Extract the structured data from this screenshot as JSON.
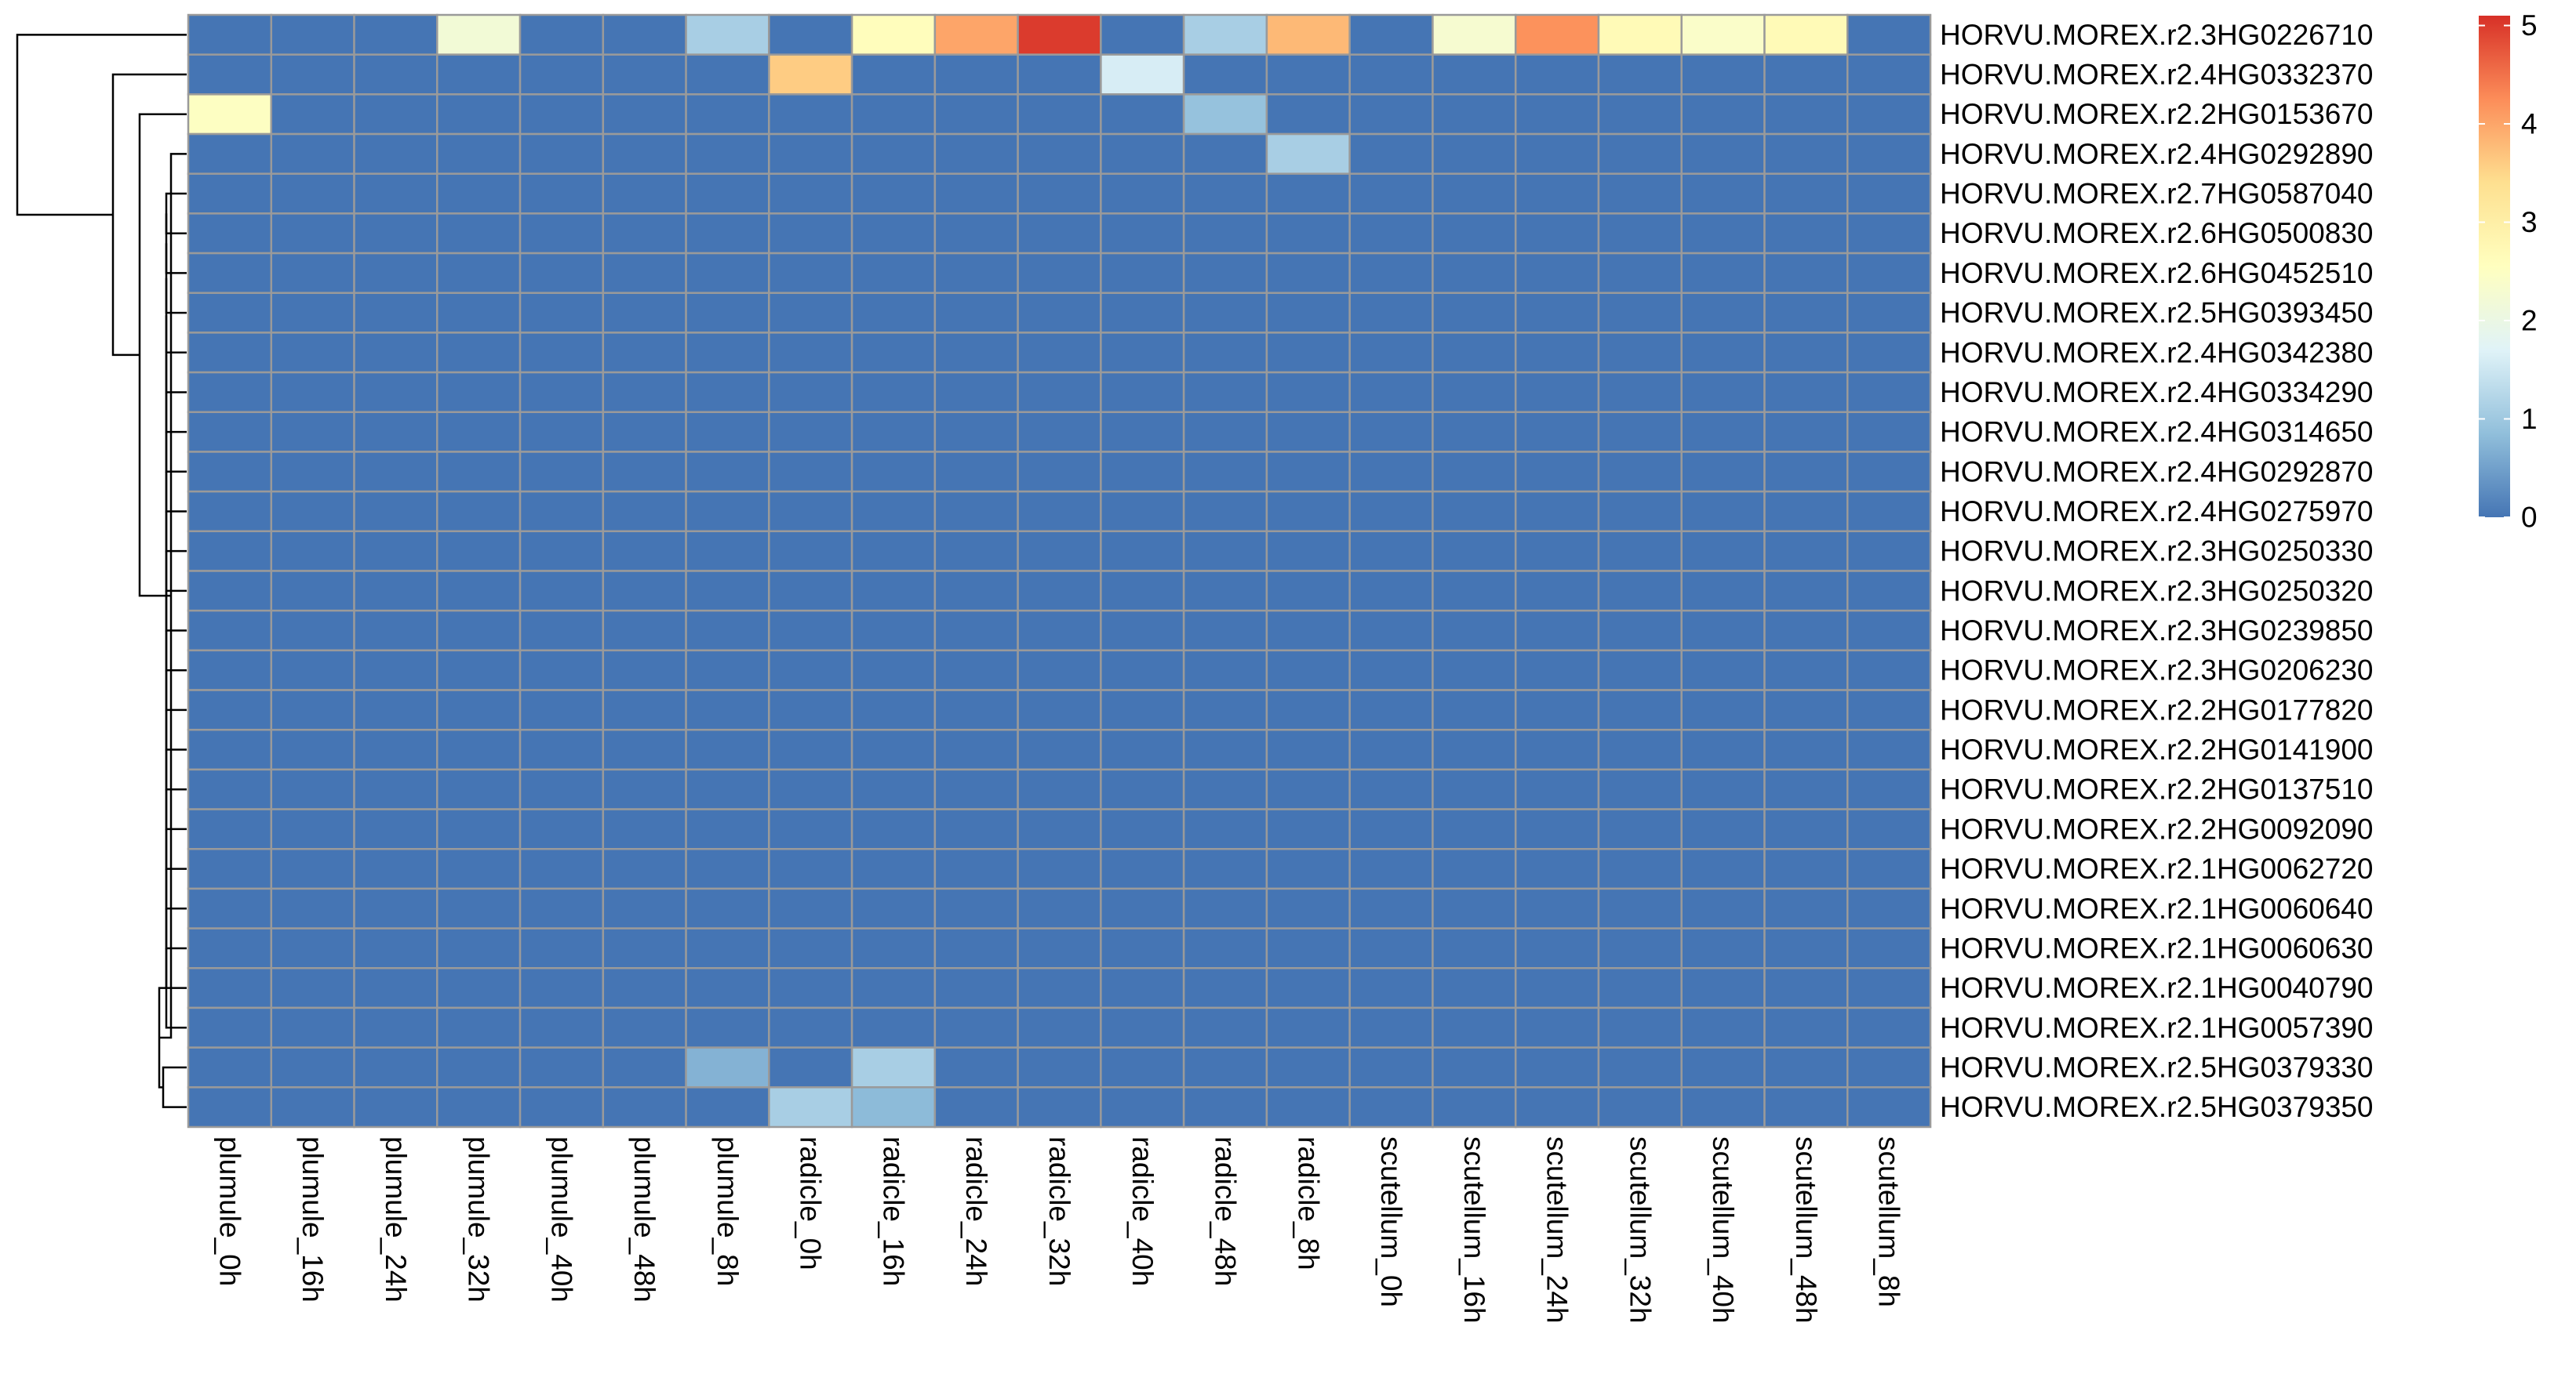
{
  "chart_data": {
    "type": "heatmap",
    "title": "",
    "xlabel": "",
    "ylabel": "",
    "columns": [
      "plumule_0h",
      "plumule_16h",
      "plumule_24h",
      "plumule_32h",
      "plumule_40h",
      "plumule_48h",
      "plumule_8h",
      "radicle_0h",
      "radicle_16h",
      "radicle_24h",
      "radicle_32h",
      "radicle_40h",
      "radicle_48h",
      "radicle_8h",
      "scutellum_0h",
      "scutellum_16h",
      "scutellum_24h",
      "scutellum_32h",
      "scutellum_40h",
      "scutellum_48h",
      "scutellum_8h"
    ],
    "rows": [
      "HORVU.MOREX.r2.3HG0226710",
      "HORVU.MOREX.r2.4HG0332370",
      "HORVU.MOREX.r2.2HG0153670",
      "HORVU.MOREX.r2.4HG0292890",
      "HORVU.MOREX.r2.7HG0587040",
      "HORVU.MOREX.r2.6HG0500830",
      "HORVU.MOREX.r2.6HG0452510",
      "HORVU.MOREX.r2.5HG0393450",
      "HORVU.MOREX.r2.4HG0342380",
      "HORVU.MOREX.r2.4HG0334290",
      "HORVU.MOREX.r2.4HG0314650",
      "HORVU.MOREX.r2.4HG0292870",
      "HORVU.MOREX.r2.4HG0275970",
      "HORVU.MOREX.r2.3HG0250330",
      "HORVU.MOREX.r2.3HG0250320",
      "HORVU.MOREX.r2.3HG0239850",
      "HORVU.MOREX.r2.3HG0206230",
      "HORVU.MOREX.r2.2HG0177820",
      "HORVU.MOREX.r2.2HG0141900",
      "HORVU.MOREX.r2.2HG0137510",
      "HORVU.MOREX.r2.2HG0092090",
      "HORVU.MOREX.r2.1HG0062720",
      "HORVU.MOREX.r2.1HG0060640",
      "HORVU.MOREX.r2.1HG0060630",
      "HORVU.MOREX.r2.1HG0040790",
      "HORVU.MOREX.r2.1HG0057390",
      "HORVU.MOREX.r2.5HG0379330",
      "HORVU.MOREX.r2.5HG0379350"
    ],
    "values": [
      [
        0,
        0,
        0,
        2.2,
        0,
        0,
        1.1,
        0,
        2.6,
        4.0,
        5.0,
        0,
        1.1,
        3.8,
        0,
        2.3,
        4.2,
        2.7,
        2.4,
        2.7,
        0
      ],
      [
        0,
        0,
        0,
        0,
        0,
        0,
        0,
        3.6,
        0,
        0,
        0,
        1.6,
        0,
        0,
        0,
        0,
        0,
        0,
        0,
        0,
        0
      ],
      [
        2.5,
        0,
        0,
        0,
        0,
        0,
        0,
        0,
        0,
        0,
        0,
        0,
        0.9,
        0,
        0,
        0,
        0,
        0,
        0,
        0,
        0
      ],
      [
        0,
        0,
        0,
        0,
        0,
        0,
        0,
        0,
        0,
        0,
        0,
        0,
        0,
        1.1,
        0,
        0,
        0,
        0,
        0,
        0,
        0
      ],
      [
        0,
        0,
        0,
        0,
        0,
        0,
        0,
        0,
        0,
        0,
        0,
        0,
        0,
        0,
        0,
        0,
        0,
        0,
        0,
        0,
        0
      ],
      [
        0,
        0,
        0,
        0,
        0,
        0,
        0,
        0,
        0,
        0,
        0,
        0,
        0,
        0,
        0,
        0,
        0,
        0,
        0,
        0,
        0
      ],
      [
        0,
        0,
        0,
        0,
        0,
        0,
        0,
        0,
        0,
        0,
        0,
        0,
        0,
        0,
        0,
        0,
        0,
        0,
        0,
        0,
        0
      ],
      [
        0,
        0,
        0,
        0,
        0,
        0,
        0,
        0,
        0,
        0,
        0,
        0,
        0,
        0,
        0,
        0,
        0,
        0,
        0,
        0,
        0
      ],
      [
        0,
        0,
        0,
        0,
        0,
        0,
        0,
        0,
        0,
        0,
        0,
        0,
        0,
        0,
        0,
        0,
        0,
        0,
        0,
        0,
        0
      ],
      [
        0,
        0,
        0,
        0,
        0,
        0,
        0,
        0,
        0,
        0,
        0,
        0,
        0,
        0,
        0,
        0,
        0,
        0,
        0,
        0,
        0
      ],
      [
        0,
        0,
        0,
        0,
        0,
        0,
        0,
        0,
        0,
        0,
        0,
        0,
        0,
        0,
        0,
        0,
        0,
        0,
        0,
        0,
        0
      ],
      [
        0,
        0,
        0,
        0,
        0,
        0,
        0,
        0,
        0,
        0,
        0,
        0,
        0,
        0,
        0,
        0,
        0,
        0,
        0,
        0,
        0
      ],
      [
        0,
        0,
        0,
        0,
        0,
        0,
        0,
        0,
        0,
        0,
        0,
        0,
        0,
        0,
        0,
        0,
        0,
        0,
        0,
        0,
        0
      ],
      [
        0,
        0,
        0,
        0,
        0,
        0,
        0,
        0,
        0,
        0,
        0,
        0,
        0,
        0,
        0,
        0,
        0,
        0,
        0,
        0,
        0
      ],
      [
        0,
        0,
        0,
        0,
        0,
        0,
        0,
        0,
        0,
        0,
        0,
        0,
        0,
        0,
        0,
        0,
        0,
        0,
        0,
        0,
        0
      ],
      [
        0,
        0,
        0,
        0,
        0,
        0,
        0,
        0,
        0,
        0,
        0,
        0,
        0,
        0,
        0,
        0,
        0,
        0,
        0,
        0,
        0
      ],
      [
        0,
        0,
        0,
        0,
        0,
        0,
        0,
        0,
        0,
        0,
        0,
        0,
        0,
        0,
        0,
        0,
        0,
        0,
        0,
        0,
        0
      ],
      [
        0,
        0,
        0,
        0,
        0,
        0,
        0,
        0,
        0,
        0,
        0,
        0,
        0,
        0,
        0,
        0,
        0,
        0,
        0,
        0,
        0
      ],
      [
        0,
        0,
        0,
        0,
        0,
        0,
        0,
        0,
        0,
        0,
        0,
        0,
        0,
        0,
        0,
        0,
        0,
        0,
        0,
        0,
        0
      ],
      [
        0,
        0,
        0,
        0,
        0,
        0,
        0,
        0,
        0,
        0,
        0,
        0,
        0,
        0,
        0,
        0,
        0,
        0,
        0,
        0,
        0
      ],
      [
        0,
        0,
        0,
        0,
        0,
        0,
        0,
        0,
        0,
        0,
        0,
        0,
        0,
        0,
        0,
        0,
        0,
        0,
        0,
        0,
        0
      ],
      [
        0,
        0,
        0,
        0,
        0,
        0,
        0,
        0,
        0,
        0,
        0,
        0,
        0,
        0,
        0,
        0,
        0,
        0,
        0,
        0,
        0
      ],
      [
        0,
        0,
        0,
        0,
        0,
        0,
        0,
        0,
        0,
        0,
        0,
        0,
        0,
        0,
        0,
        0,
        0,
        0,
        0,
        0,
        0
      ],
      [
        0,
        0,
        0,
        0,
        0,
        0,
        0,
        0,
        0,
        0,
        0,
        0,
        0,
        0,
        0,
        0,
        0,
        0,
        0,
        0,
        0
      ],
      [
        0,
        0,
        0,
        0,
        0,
        0,
        0,
        0,
        0,
        0,
        0,
        0,
        0,
        0,
        0,
        0,
        0,
        0,
        0,
        0,
        0
      ],
      [
        0,
        0,
        0,
        0,
        0,
        0,
        0,
        0,
        0,
        0,
        0,
        0,
        0,
        0,
        0,
        0,
        0,
        0,
        0,
        0,
        0
      ],
      [
        0,
        0,
        0,
        0,
        0,
        0,
        0.7,
        0,
        1.1,
        0,
        0,
        0,
        0,
        0,
        0,
        0,
        0,
        0,
        0,
        0,
        0
      ],
      [
        0,
        0,
        0,
        0,
        0,
        0,
        0,
        1.1,
        0.8,
        0,
        0,
        0,
        0,
        0,
        0,
        0,
        0,
        0,
        0,
        0,
        0
      ]
    ],
    "color_scale": {
      "min": 0,
      "max": 5.1,
      "ticks": [
        0,
        1,
        2,
        3,
        4,
        5
      ],
      "stops": [
        "#4575b4",
        "#91bfdb",
        "#e0f3f8",
        "#ffffbf",
        "#fee090",
        "#fc8d59",
        "#d73027"
      ]
    },
    "grid": true,
    "legend": "top-right",
    "row_dendrogram": true
  }
}
